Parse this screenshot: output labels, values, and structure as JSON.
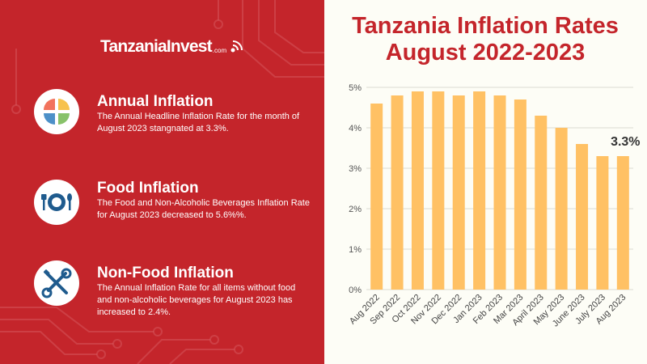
{
  "logo": {
    "text": "TanzaniaInvest",
    "domain": ".com"
  },
  "items": [
    {
      "title": "Annual Inflation",
      "text": "The Annual Headline Inflation Rate for the month of August 2023 stangnated at 3.3%.",
      "icon": "pie-chart-icon"
    },
    {
      "title": "Food Inflation",
      "text": "The Food and Non-Alcoholic Beverages Inflation Rate for August 2023 decreased to 5.6%%.",
      "icon": "plate-cutlery-icon"
    },
    {
      "title": "Non-Food Inflation",
      "text": "The Annual Inflation Rate for all items without food and non-alcoholic beverages for August 2023 has increased to 2.4%.",
      "icon": "tools-icon"
    }
  ],
  "colors": {
    "red": "#c4252b",
    "bar": "#ffc164",
    "background": "#fdfdf6"
  },
  "chart_data": {
    "type": "bar",
    "title_lines": [
      "Tanzania Inflation Rates",
      "August 2022-2023"
    ],
    "categories": [
      "Aug 2022",
      "Sep 2022",
      "Oct 2022",
      "Nov 2022",
      "Dec 2022",
      "Jan 2023",
      "Feb 2023",
      "Mar 2023",
      "April 2023",
      "May 2023",
      "June 2023",
      "July 2023",
      "Aug 2023"
    ],
    "values": [
      4.6,
      4.8,
      4.9,
      4.9,
      4.8,
      4.9,
      4.8,
      4.7,
      4.3,
      4.0,
      3.6,
      3.3,
      3.3
    ],
    "ylim": [
      0,
      5
    ],
    "yticks": [
      "0%",
      "1%",
      "2%",
      "3%",
      "4%",
      "5%"
    ],
    "grid": true,
    "annotation": {
      "category": "Aug 2023",
      "text": "3.3%"
    }
  }
}
